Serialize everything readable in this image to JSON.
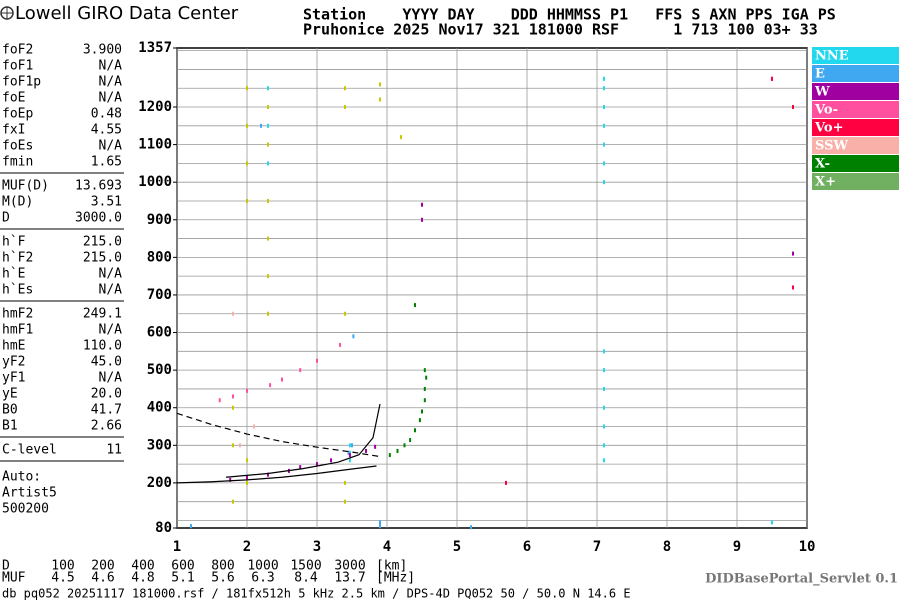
{
  "header": {
    "logo": "Lowell GIRO Data Center",
    "line1": "Station    YYYY DAY    DDD HHMMSS P1   FFS S AXN PPS IGA PS",
    "line2": "Pruhonice 2025 Nov17 321 181000 RSF      1 713 100 03+ 33"
  },
  "parameter_groups": [
    [
      {
        "name": "foF2",
        "value": "3.900"
      },
      {
        "name": "foF1",
        "value": "N/A"
      },
      {
        "name": "foF1p",
        "value": "N/A"
      },
      {
        "name": "foE",
        "value": "N/A"
      },
      {
        "name": "foEp",
        "value": "0.48"
      },
      {
        "name": "fxI",
        "value": "4.55"
      },
      {
        "name": "foEs",
        "value": "N/A"
      },
      {
        "name": "fmin",
        "value": "1.65"
      }
    ],
    [
      {
        "name": "MUF(D)",
        "value": "13.693"
      },
      {
        "name": "M(D)",
        "value": "3.51"
      },
      {
        "name": "D",
        "value": "3000.0"
      }
    ],
    [
      {
        "name": "h`F",
        "value": "215.0"
      },
      {
        "name": "h`F2",
        "value": "215.0"
      },
      {
        "name": "h`E",
        "value": "N/A"
      },
      {
        "name": "h`Es",
        "value": "N/A"
      }
    ],
    [
      {
        "name": "hmF2",
        "value": "249.1"
      },
      {
        "name": "hmF1",
        "value": "N/A"
      },
      {
        "name": "hmE",
        "value": "110.0"
      },
      {
        "name": "yF2",
        "value": "45.0"
      },
      {
        "name": "yF1",
        "value": "N/A"
      },
      {
        "name": "yE",
        "value": "20.0"
      },
      {
        "name": "B0",
        "value": "41.7"
      },
      {
        "name": "B1",
        "value": "2.66"
      }
    ],
    [
      {
        "name": "C-level",
        "value": "11"
      }
    ]
  ],
  "auto": [
    "Auto:",
    "Artist5",
    "500200"
  ],
  "chart_data": {
    "type": "scatter",
    "xlim": [
      1,
      10
    ],
    "xticks": [
      1,
      2,
      3,
      4,
      5,
      6,
      7,
      8,
      9,
      10
    ],
    "ylim": [
      80,
      1357
    ],
    "yticks": [
      80,
      200,
      300,
      400,
      500,
      600,
      700,
      800,
      900,
      1000,
      1100,
      1200,
      1357
    ],
    "ygrid": [
      100,
      150,
      200,
      250,
      300,
      350,
      400,
      450,
      500,
      550,
      600,
      650,
      700,
      750,
      800,
      850,
      900,
      950,
      1000,
      1050,
      1100,
      1150,
      1200,
      1250,
      1300,
      1350
    ],
    "series": [
      {
        "name": "NNE",
        "color": "#22d8ee",
        "x": [
          7.1,
          7.1,
          7.1,
          7.1,
          7.1,
          7.1,
          7.1,
          7.1,
          7.1,
          7.1,
          7.1,
          7.1,
          7.1,
          7.1,
          3.47,
          3.47,
          3.47,
          2.3,
          2.3,
          2.3,
          9.5
        ],
        "y": [
          1000,
          1050,
          1100,
          1150,
          1200,
          1250,
          1275,
          260,
          300,
          350,
          400,
          450,
          500,
          550,
          260,
          280,
          300,
          1050,
          1150,
          1250,
          95
        ]
      },
      {
        "name": "E",
        "color": "#40a8f0",
        "x": [
          3.45,
          3.5,
          3.52,
          2.2,
          3.9,
          3.9,
          1.2,
          5.2
        ],
        "y": [
          280,
          300,
          590,
          1150,
          95,
          85,
          85,
          82
        ]
      },
      {
        "name": "W",
        "color": "#a000a0",
        "x": [
          1.76,
          2.0,
          2.3,
          2.6,
          2.76,
          3.0,
          3.2,
          3.47,
          3.7,
          3.83,
          4.5,
          4.5,
          9.5,
          9.8
        ],
        "y": [
          208,
          215,
          222,
          232,
          242,
          250,
          260,
          274,
          285,
          296,
          900,
          940,
          1275,
          810
        ]
      },
      {
        "name": "Vo-",
        "color": "#ff50a0",
        "x": [
          1.61,
          1.8,
          2.0,
          2.33,
          2.5,
          2.76,
          3.0,
          3.33
        ],
        "y": [
          420,
          430,
          445,
          460,
          475,
          500,
          525,
          567
        ]
      },
      {
        "name": "Vo+",
        "color": "#ff0040",
        "x": [
          9.5,
          9.8,
          9.8,
          5.7
        ],
        "y": [
          1275,
          720,
          1200,
          200
        ]
      },
      {
        "name": "SSW",
        "color": "#f8b0a8",
        "x": [
          1.9,
          2.1,
          1.8
        ],
        "y": [
          300,
          350,
          650
        ]
      },
      {
        "name": "X-",
        "color": "#008000",
        "x": [
          4.04,
          4.15,
          4.25,
          4.33,
          4.4,
          4.47,
          4.5,
          4.54,
          4.54,
          4.56,
          4.54,
          4.4
        ],
        "y": [
          274,
          285,
          300,
          314,
          340,
          367,
          390,
          420,
          450,
          480,
          500,
          673
        ]
      },
      {
        "name": "X+",
        "color": "#c8c800",
        "x": [
          2.0,
          2.0,
          2.0,
          2.0,
          2.0,
          2.0,
          2.3,
          2.3,
          2.3,
          2.3,
          2.3,
          2.3,
          3.4,
          3.4,
          3.4,
          3.4,
          3.4,
          3.9,
          3.9,
          1.8,
          1.8,
          1.8,
          4.2
        ],
        "y": [
          950,
          1050,
          1150,
          1250,
          200,
          260,
          650,
          750,
          850,
          950,
          1100,
          1200,
          1200,
          1250,
          200,
          150,
          650,
          1220,
          1260,
          400,
          300,
          150,
          1120
        ]
      }
    ],
    "lines": [
      {
        "style": "dashed",
        "x": [
          1.0,
          1.5,
          2.0,
          2.5,
          3.0,
          3.5,
          3.9
        ],
        "y": [
          385,
          355,
          330,
          310,
          295,
          282,
          270
        ]
      },
      {
        "style": "solid",
        "x": [
          1.0,
          1.5,
          2.0,
          2.5,
          3.0,
          3.5,
          3.85
        ],
        "y": [
          200,
          203,
          208,
          215,
          225,
          237,
          245
        ]
      },
      {
        "style": "solid",
        "x": [
          1.7,
          2.3,
          2.8,
          3.3,
          3.6,
          3.8,
          3.9
        ],
        "y": [
          215,
          225,
          238,
          255,
          275,
          320,
          410
        ]
      }
    ]
  },
  "distance_table": {
    "d_label": "D",
    "d_values": [
      100,
      200,
      400,
      600,
      800,
      1000,
      1500,
      3000
    ],
    "d_unit": "[km]",
    "muf_label": "MUF",
    "muf_values": [
      4.5,
      4.6,
      4.8,
      5.1,
      5.6,
      6.3,
      8.4,
      13.7
    ],
    "muf_unit": "[MHz]"
  },
  "servlet": "DIDBasePortal_Servlet 0.1",
  "footer": "db pq052 20251117 181000.rsf / 181fx512h 5 kHz 2.5 km / DPS-4D PQ052 50 / 50.0 N 14.6 E"
}
